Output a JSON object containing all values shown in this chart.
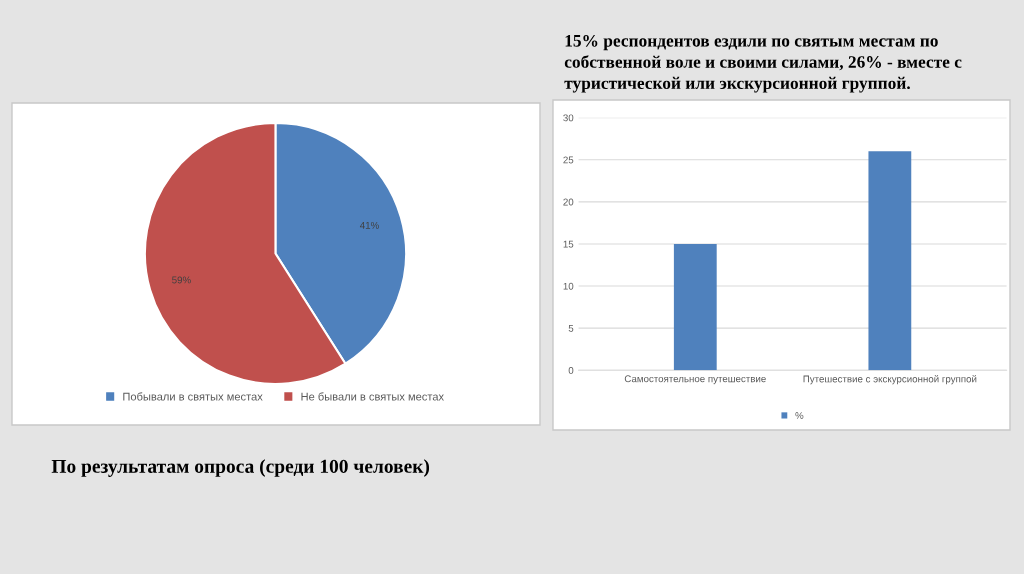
{
  "chart_data": [
    {
      "type": "pie",
      "categories": [
        "Побывали в святых местах",
        "Не бывали в святых местах"
      ],
      "values": [
        41,
        59
      ],
      "colors": [
        "#4f81bd",
        "#c0504d"
      ],
      "value_labels": [
        "41%",
        "59%"
      ],
      "legend": "bottom",
      "annotations": [
        "По результатам опроса (среди 100 человек)"
      ]
    },
    {
      "type": "bar",
      "title": "15% респондентов ездили по святым местам по собственной воле и своими силами, 26% - вместе с туристической или экскурсионной группой.",
      "categories": [
        "Самостоятельное путешествие",
        "Путешествие с экскурсионной группой"
      ],
      "series": [
        {
          "name": "%",
          "color": "#4f81bd",
          "values": [
            15,
            26
          ]
        }
      ],
      "ylim": [
        0,
        30
      ],
      "yticks": [
        0,
        5,
        10,
        15,
        20,
        25,
        30
      ],
      "grid": "y",
      "legend": "bottom"
    }
  ]
}
